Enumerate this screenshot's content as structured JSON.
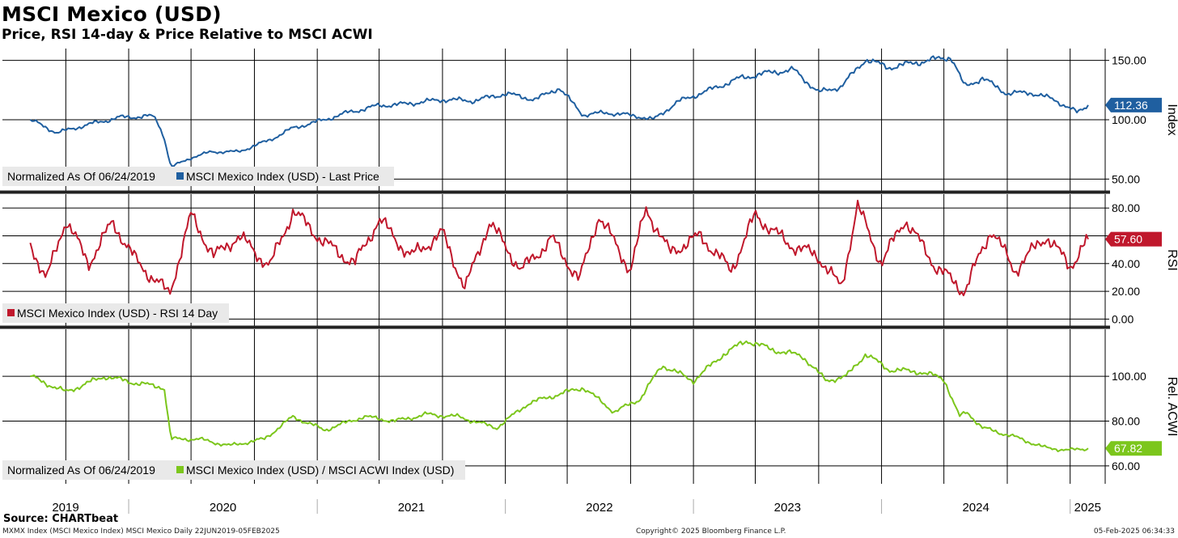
{
  "header": {
    "title": "MSCI Mexico (USD)",
    "subtitle": "Price, RSI 14-day & Price Relative to MSCI ACWI"
  },
  "footer": {
    "source": "Source: CHARTbeat",
    "left": "MXMX Index (MSCI Mexico Index) MSCI Mexico  Daily 22JUN2019-05FEB2025",
    "center": "Copyright© 2025 Bloomberg Finance L.P.",
    "right": "05-Feb-2025 06:34:33"
  },
  "colors": {
    "price": "#1f5fa0",
    "rsi": "#c0182c",
    "relative": "#7cc61c",
    "grid": "#000000"
  },
  "chart_data": [
    {
      "type": "line",
      "axis_label": "Index",
      "ylim": [
        40,
        160
      ],
      "yticks": [
        50,
        100,
        150
      ],
      "ytick_labels": [
        "50.00",
        "100.00",
        "150.00"
      ],
      "grid": true,
      "legend_placement": "bottom-left",
      "legend_note": "Normalized As Of 06/24/2019",
      "series": [
        {
          "name": "MSCI Mexico Index (USD) - Last Price",
          "last_value_label": "112.36",
          "x": [
            "2019-06-24",
            "2019-08-15",
            "2019-10-15",
            "2019-12-15",
            "2020-02-15",
            "2020-02-24",
            "2020-03-10",
            "2020-03-23",
            "2020-05-01",
            "2020-06-10",
            "2020-08-01",
            "2020-10-01",
            "2020-11-15",
            "2021-01-15",
            "2021-03-01",
            "2021-05-01",
            "2021-06-15",
            "2021-09-01",
            "2021-11-01",
            "2022-01-01",
            "2022-03-01",
            "2022-04-15",
            "2022-06-01",
            "2022-07-15",
            "2022-09-15",
            "2022-10-15",
            "2022-12-01",
            "2023-02-01",
            "2023-04-01",
            "2023-06-01",
            "2023-07-15",
            "2023-09-01",
            "2023-10-15",
            "2023-12-01",
            "2024-01-15",
            "2024-04-01",
            "2024-05-15",
            "2024-06-10",
            "2024-07-15",
            "2024-09-01",
            "2024-10-15",
            "2024-12-01",
            "2025-01-15",
            "2025-02-05"
          ],
          "values": [
            100,
            89,
            96,
            102,
            103,
            100,
            85,
            60,
            68,
            73,
            73,
            83,
            93,
            100,
            106,
            112,
            113,
            117,
            116,
            122,
            117,
            127,
            104,
            106,
            103,
            100,
            115,
            125,
            135,
            140,
            142,
            123,
            128,
            151,
            144,
            150,
            153,
            128,
            135,
            122,
            123,
            117,
            106,
            112.36
          ]
        }
      ]
    },
    {
      "type": "line",
      "axis_label": "RSI",
      "ylim": [
        -5,
        90
      ],
      "yticks": [
        0,
        20,
        40,
        60,
        80
      ],
      "ytick_labels": [
        "0.00",
        "20.00",
        "40.00",
        "60.00",
        "80.00"
      ],
      "grid": true,
      "legend_placement": "bottom-left",
      "series": [
        {
          "name": "MSCI Mexico Index (USD) - RSI 14 Day",
          "last_value_label": "57.60",
          "x": [
            "2019-06-24",
            "2019-07-25",
            "2019-09-01",
            "2019-10-15",
            "2019-12-01",
            "2020-01-15",
            "2020-03-20",
            "2020-05-01",
            "2020-06-15",
            "2020-08-01",
            "2020-10-01",
            "2020-11-15",
            "2021-01-15",
            "2021-03-15",
            "2021-05-01",
            "2021-07-01",
            "2021-09-01",
            "2021-10-15",
            "2021-12-01",
            "2022-02-01",
            "2022-04-01",
            "2022-05-25",
            "2022-07-01",
            "2022-09-01",
            "2022-10-01",
            "2022-11-15",
            "2023-01-15",
            "2023-03-15",
            "2023-05-01",
            "2023-07-01",
            "2023-09-01",
            "2023-10-15",
            "2023-11-15",
            "2024-01-01",
            "2024-02-15",
            "2024-04-15",
            "2024-06-10",
            "2024-08-01",
            "2024-09-15",
            "2024-11-15",
            "2025-01-01",
            "2025-02-05"
          ],
          "values": [
            55,
            28,
            72,
            40,
            70,
            42,
            18,
            75,
            45,
            60,
            38,
            78,
            55,
            40,
            72,
            45,
            62,
            22,
            70,
            35,
            58,
            28,
            75,
            35,
            80,
            48,
            60,
            35,
            75,
            55,
            45,
            22,
            82,
            40,
            72,
            38,
            20,
            65,
            35,
            60,
            38,
            57.6
          ]
        }
      ]
    },
    {
      "type": "line",
      "axis_label": "Rel. ACWI",
      "ylim": [
        52,
        121
      ],
      "yticks": [
        60,
        80,
        100
      ],
      "ytick_labels": [
        "60.00",
        "80.00",
        "100.00"
      ],
      "grid": true,
      "legend_placement": "bottom-left",
      "legend_note": "Normalized As Of 06/24/2019",
      "series": [
        {
          "name": "MSCI Mexico Index (USD) / MSCI ACWI Index (USD)",
          "last_value_label": "67.82",
          "x": [
            "2019-06-24",
            "2019-09-01",
            "2019-11-15",
            "2020-01-15",
            "2020-03-10",
            "2020-03-23",
            "2020-05-15",
            "2020-07-15",
            "2020-09-20",
            "2020-11-15",
            "2021-01-15",
            "2021-04-01",
            "2021-06-01",
            "2021-08-01",
            "2021-10-01",
            "2021-12-15",
            "2022-02-15",
            "2022-04-15",
            "2022-06-01",
            "2022-08-01",
            "2022-09-20",
            "2022-11-01",
            "2023-01-01",
            "2023-03-01",
            "2023-04-15",
            "2023-06-01",
            "2023-08-01",
            "2023-09-15",
            "2023-10-25",
            "2023-12-01",
            "2024-01-15",
            "2024-03-15",
            "2024-05-01",
            "2024-05-31",
            "2024-06-15",
            "2024-07-15",
            "2024-09-15",
            "2024-11-15",
            "2025-01-01",
            "2025-02-05"
          ],
          "values": [
            100,
            93,
            100,
            97,
            95,
            72,
            72,
            69,
            72,
            82,
            76,
            82,
            80,
            83,
            82,
            77,
            88,
            92,
            95,
            84,
            90,
            105,
            98,
            110,
            116,
            112,
            109,
            98,
            100,
            110,
            103,
            102,
            99,
            82,
            84,
            77,
            73,
            68,
            67,
            67.82
          ]
        }
      ]
    }
  ],
  "x_axis": {
    "range": [
      "2019-05-01",
      "2025-03-10"
    ],
    "labels": [
      "2019",
      "2020",
      "2021",
      "2022",
      "2023",
      "2024",
      "2025"
    ]
  }
}
